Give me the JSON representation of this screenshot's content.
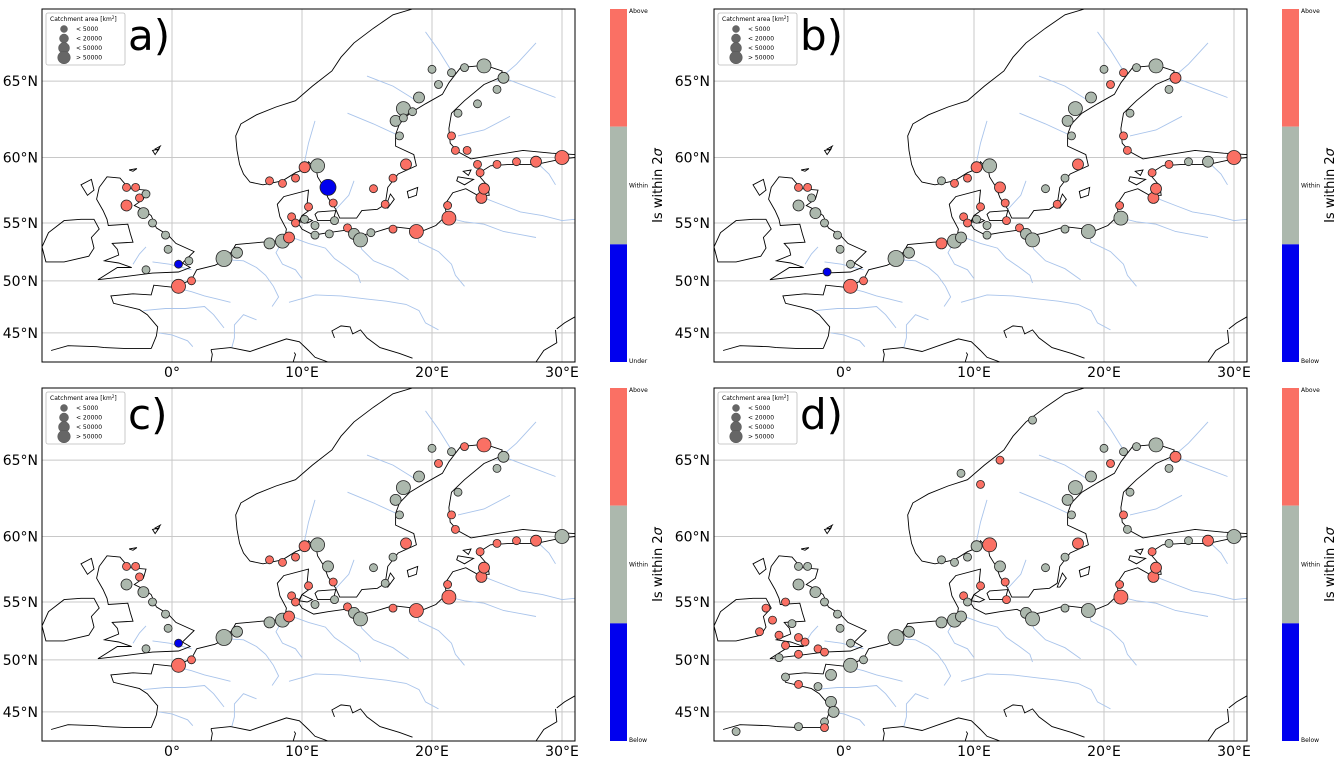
{
  "colors": {
    "above": "#fa7064",
    "within": "#acb8ad",
    "below": "#0000ee",
    "coast": "#000000",
    "river": "#a9c4eb",
    "grid": "#c8c8c8"
  },
  "legend": {
    "title": "Catchment area [km",
    "title_sup": "2",
    "title_end": "]",
    "items": [
      "< 5000",
      "< 20000",
      "< 50000",
      "> 50000"
    ]
  },
  "lat_ticks": [
    "65°N",
    "60°N",
    "55°N",
    "50°N",
    "45°N"
  ],
  "lon_ticks": [
    "0°",
    "10°E",
    "20°E",
    "30°E"
  ],
  "colorbar": {
    "title": "Is within 2",
    "sigma": "σ",
    "within": "Within"
  },
  "panels": [
    {
      "label": "a)",
      "colorbar_top": "Above",
      "colorbar_bottom": "Under"
    },
    {
      "label": "b)",
      "colorbar_top": "Above",
      "colorbar_bottom": "Below"
    },
    {
      "label": "c)",
      "colorbar_top": "Above",
      "colorbar_bottom": "Below"
    },
    {
      "label": "d)",
      "colorbar_top": "Above",
      "colorbar_bottom": "Below"
    }
  ],
  "stations": [
    [
      [
        -3.5,
        57.8,
        1,
        "a"
      ],
      [
        -2.8,
        57.8,
        1,
        "a"
      ],
      [
        -3.5,
        56.4,
        2,
        "a"
      ],
      [
        -2.5,
        57.0,
        1,
        "a"
      ],
      [
        -2.0,
        57.3,
        1,
        "w"
      ],
      [
        -2.2,
        55.8,
        2,
        "w"
      ],
      [
        -1.5,
        55.0,
        1,
        "w"
      ],
      [
        -0.5,
        54.0,
        1,
        "w"
      ],
      [
        -0.3,
        52.8,
        1,
        "w"
      ],
      [
        0.5,
        51.5,
        1,
        "b"
      ],
      [
        1.3,
        51.8,
        1,
        "w"
      ],
      [
        -2.0,
        51.0,
        1,
        "w"
      ],
      [
        0.5,
        49.5,
        3,
        "a"
      ],
      [
        1.5,
        50.0,
        1,
        "a"
      ],
      [
        4.0,
        52.0,
        4,
        "w"
      ],
      [
        5.0,
        52.5,
        2,
        "w"
      ],
      [
        7.5,
        53.3,
        2,
        "w"
      ],
      [
        8.5,
        53.5,
        3,
        "w"
      ],
      [
        9.0,
        53.8,
        2,
        "a"
      ],
      [
        7.5,
        58.3,
        1,
        "a"
      ],
      [
        8.5,
        58.1,
        1,
        "a"
      ],
      [
        9.5,
        58.5,
        1,
        "a"
      ],
      [
        10.2,
        59.3,
        2,
        "a"
      ],
      [
        11.2,
        59.4,
        3,
        "w"
      ],
      [
        12.0,
        57.8,
        4,
        "b"
      ],
      [
        12.4,
        56.6,
        1,
        "a"
      ],
      [
        10.5,
        56.3,
        1,
        "a"
      ],
      [
        9.2,
        55.5,
        1,
        "a"
      ],
      [
        9.5,
        55.0,
        1,
        "a"
      ],
      [
        10.2,
        55.3,
        1,
        "w"
      ],
      [
        11.0,
        54.8,
        1,
        "w"
      ],
      [
        12.5,
        55.2,
        1,
        "w"
      ],
      [
        11.0,
        54.0,
        1,
        "w"
      ],
      [
        12.1,
        54.1,
        1,
        "w"
      ],
      [
        13.5,
        54.6,
        1,
        "a"
      ],
      [
        14.0,
        54.1,
        2,
        "w"
      ],
      [
        14.5,
        53.6,
        3,
        "w"
      ],
      [
        15.3,
        54.2,
        1,
        "w"
      ],
      [
        17.0,
        54.5,
        1,
        "a"
      ],
      [
        18.8,
        54.3,
        3,
        "a"
      ],
      [
        21.3,
        55.4,
        3,
        "a"
      ],
      [
        21.2,
        56.4,
        1,
        "a"
      ],
      [
        23.8,
        57.0,
        2,
        "a"
      ],
      [
        24.0,
        57.7,
        2,
        "a"
      ],
      [
        23.7,
        58.9,
        1,
        "a"
      ],
      [
        23.5,
        59.5,
        1,
        "a"
      ],
      [
        25.0,
        59.5,
        1,
        "a"
      ],
      [
        26.5,
        59.7,
        1,
        "a"
      ],
      [
        28.0,
        59.7,
        2,
        "a"
      ],
      [
        30.0,
        60.0,
        3,
        "a"
      ],
      [
        15.5,
        57.7,
        1,
        "a"
      ],
      [
        16.4,
        56.5,
        1,
        "a"
      ],
      [
        17.0,
        58.5,
        1,
        "a"
      ],
      [
        18.0,
        59.5,
        2,
        "a"
      ],
      [
        17.5,
        61.5,
        1,
        "w"
      ],
      [
        17.2,
        62.5,
        2,
        "w"
      ],
      [
        17.8,
        63.3,
        3,
        "w"
      ],
      [
        19.0,
        64.0,
        2,
        "w"
      ],
      [
        20.5,
        64.8,
        1,
        "w"
      ],
      [
        21.5,
        65.5,
        1,
        "w"
      ],
      [
        22.5,
        65.8,
        1,
        "w"
      ],
      [
        24.0,
        65.9,
        3,
        "w"
      ],
      [
        25.5,
        65.2,
        2,
        "w"
      ],
      [
        25.0,
        64.5,
        1,
        "w"
      ],
      [
        23.5,
        63.6,
        1,
        "w"
      ],
      [
        22.0,
        63.0,
        1,
        "w"
      ],
      [
        21.5,
        61.5,
        1,
        "a"
      ],
      [
        21.8,
        60.5,
        1,
        "a"
      ],
      [
        22.7,
        60.5,
        1,
        "a"
      ],
      [
        20.0,
        65.7,
        1,
        "w"
      ],
      [
        18.5,
        63.1,
        1,
        "w"
      ],
      [
        17.8,
        62.7,
        1,
        "w"
      ]
    ],
    [
      [
        -3.5,
        57.8,
        1,
        "a"
      ],
      [
        -2.8,
        57.8,
        1,
        "a"
      ],
      [
        -3.5,
        56.4,
        2,
        "w"
      ],
      [
        -2.5,
        57.0,
        1,
        "w"
      ],
      [
        -2.2,
        55.8,
        2,
        "w"
      ],
      [
        -1.5,
        55.0,
        1,
        "w"
      ],
      [
        -0.5,
        54.0,
        1,
        "w"
      ],
      [
        -0.3,
        52.8,
        1,
        "w"
      ],
      [
        -1.3,
        50.8,
        1,
        "b"
      ],
      [
        0.5,
        51.5,
        1,
        "w"
      ],
      [
        0.5,
        49.5,
        3,
        "a"
      ],
      [
        1.5,
        50.0,
        1,
        "a"
      ],
      [
        4.0,
        52.0,
        4,
        "w"
      ],
      [
        5.0,
        52.5,
        2,
        "w"
      ],
      [
        7.5,
        53.3,
        2,
        "a"
      ],
      [
        8.5,
        53.5,
        3,
        "w"
      ],
      [
        9.0,
        53.8,
        2,
        "w"
      ],
      [
        7.5,
        58.3,
        1,
        "w"
      ],
      [
        8.5,
        58.1,
        1,
        "a"
      ],
      [
        9.5,
        58.5,
        1,
        "a"
      ],
      [
        10.2,
        59.3,
        2,
        "a"
      ],
      [
        11.2,
        59.4,
        3,
        "w"
      ],
      [
        12.0,
        57.8,
        2,
        "a"
      ],
      [
        12.4,
        56.6,
        1,
        "a"
      ],
      [
        10.5,
        56.3,
        1,
        "a"
      ],
      [
        9.2,
        55.5,
        1,
        "a"
      ],
      [
        9.5,
        55.0,
        1,
        "a"
      ],
      [
        10.2,
        55.3,
        1,
        "w"
      ],
      [
        11.0,
        54.8,
        1,
        "w"
      ],
      [
        12.5,
        55.2,
        1,
        "a"
      ],
      [
        11.0,
        54.0,
        1,
        "w"
      ],
      [
        13.5,
        54.6,
        1,
        "a"
      ],
      [
        14.0,
        54.1,
        2,
        "w"
      ],
      [
        14.5,
        53.6,
        3,
        "w"
      ],
      [
        17.0,
        54.5,
        1,
        "w"
      ],
      [
        18.8,
        54.3,
        3,
        "w"
      ],
      [
        21.3,
        55.4,
        3,
        "w"
      ],
      [
        21.2,
        56.4,
        1,
        "a"
      ],
      [
        23.8,
        57.0,
        2,
        "a"
      ],
      [
        24.0,
        57.7,
        2,
        "a"
      ],
      [
        23.7,
        58.9,
        1,
        "a"
      ],
      [
        25.0,
        59.5,
        1,
        "a"
      ],
      [
        26.5,
        59.7,
        1,
        "w"
      ],
      [
        28.0,
        59.7,
        2,
        "w"
      ],
      [
        30.0,
        60.0,
        3,
        "a"
      ],
      [
        15.5,
        57.7,
        1,
        "w"
      ],
      [
        16.4,
        56.5,
        1,
        "a"
      ],
      [
        17.0,
        58.5,
        1,
        "w"
      ],
      [
        18.0,
        59.5,
        2,
        "a"
      ],
      [
        17.5,
        61.5,
        1,
        "w"
      ],
      [
        17.2,
        62.5,
        2,
        "w"
      ],
      [
        17.8,
        63.3,
        3,
        "w"
      ],
      [
        19.0,
        64.0,
        2,
        "w"
      ],
      [
        20.5,
        64.8,
        1,
        "a"
      ],
      [
        21.5,
        65.5,
        1,
        "a"
      ],
      [
        22.5,
        65.8,
        1,
        "w"
      ],
      [
        24.0,
        65.9,
        3,
        "w"
      ],
      [
        25.5,
        65.2,
        2,
        "a"
      ],
      [
        25.0,
        64.5,
        1,
        "w"
      ],
      [
        22.0,
        63.0,
        1,
        "w"
      ],
      [
        21.5,
        61.5,
        1,
        "a"
      ],
      [
        21.8,
        60.5,
        1,
        "a"
      ],
      [
        20.0,
        65.7,
        1,
        "w"
      ]
    ],
    [
      [
        -3.5,
        57.8,
        1,
        "a"
      ],
      [
        -2.8,
        57.8,
        1,
        "a"
      ],
      [
        -3.5,
        56.4,
        2,
        "w"
      ],
      [
        -2.5,
        57.0,
        1,
        "a"
      ],
      [
        -2.2,
        55.8,
        2,
        "w"
      ],
      [
        -1.5,
        55.0,
        1,
        "w"
      ],
      [
        -0.5,
        54.0,
        1,
        "w"
      ],
      [
        -0.3,
        52.8,
        1,
        "w"
      ],
      [
        0.5,
        51.5,
        1,
        "b"
      ],
      [
        -2.0,
        51.0,
        1,
        "w"
      ],
      [
        0.5,
        49.5,
        3,
        "a"
      ],
      [
        1.5,
        50.0,
        1,
        "a"
      ],
      [
        4.0,
        52.0,
        4,
        "w"
      ],
      [
        5.0,
        52.5,
        2,
        "w"
      ],
      [
        7.5,
        53.3,
        2,
        "w"
      ],
      [
        8.5,
        53.5,
        3,
        "w"
      ],
      [
        9.0,
        53.8,
        2,
        "a"
      ],
      [
        7.5,
        58.3,
        1,
        "a"
      ],
      [
        8.5,
        58.1,
        1,
        "a"
      ],
      [
        9.5,
        58.5,
        1,
        "a"
      ],
      [
        10.2,
        59.3,
        2,
        "a"
      ],
      [
        11.2,
        59.4,
        3,
        "w"
      ],
      [
        12.0,
        57.8,
        2,
        "w"
      ],
      [
        12.4,
        56.6,
        1,
        "a"
      ],
      [
        10.5,
        56.3,
        1,
        "a"
      ],
      [
        9.2,
        55.5,
        1,
        "a"
      ],
      [
        9.5,
        55.0,
        1,
        "a"
      ],
      [
        11.0,
        54.8,
        1,
        "w"
      ],
      [
        12.5,
        55.2,
        1,
        "w"
      ],
      [
        13.5,
        54.6,
        1,
        "a"
      ],
      [
        14.0,
        54.1,
        2,
        "w"
      ],
      [
        14.5,
        53.6,
        3,
        "w"
      ],
      [
        17.0,
        54.5,
        1,
        "a"
      ],
      [
        18.8,
        54.3,
        3,
        "a"
      ],
      [
        21.3,
        55.4,
        3,
        "a"
      ],
      [
        21.2,
        56.4,
        1,
        "a"
      ],
      [
        23.8,
        57.0,
        2,
        "a"
      ],
      [
        24.0,
        57.7,
        2,
        "a"
      ],
      [
        23.7,
        58.9,
        1,
        "a"
      ],
      [
        25.0,
        59.5,
        1,
        "a"
      ],
      [
        26.5,
        59.7,
        1,
        "a"
      ],
      [
        28.0,
        59.7,
        2,
        "a"
      ],
      [
        30.0,
        60.0,
        3,
        "w"
      ],
      [
        15.5,
        57.7,
        1,
        "w"
      ],
      [
        16.4,
        56.5,
        1,
        "w"
      ],
      [
        17.0,
        58.5,
        1,
        "w"
      ],
      [
        18.0,
        59.5,
        2,
        "a"
      ],
      [
        17.5,
        61.5,
        1,
        "w"
      ],
      [
        17.2,
        62.5,
        2,
        "w"
      ],
      [
        17.8,
        63.3,
        3,
        "w"
      ],
      [
        19.0,
        64.0,
        2,
        "w"
      ],
      [
        20.5,
        64.8,
        1,
        "a"
      ],
      [
        21.5,
        65.5,
        1,
        "w"
      ],
      [
        22.5,
        65.8,
        1,
        "a"
      ],
      [
        24.0,
        65.9,
        3,
        "a"
      ],
      [
        25.5,
        65.2,
        2,
        "w"
      ],
      [
        25.0,
        64.5,
        1,
        "w"
      ],
      [
        22.0,
        63.0,
        1,
        "w"
      ],
      [
        21.5,
        61.5,
        1,
        "a"
      ],
      [
        21.8,
        60.5,
        1,
        "a"
      ],
      [
        20.0,
        65.7,
        1,
        "w"
      ]
    ],
    [
      [
        -3.5,
        57.8,
        1,
        "w"
      ],
      [
        -2.8,
        57.8,
        1,
        "w"
      ],
      [
        -3.5,
        56.4,
        2,
        "w"
      ],
      [
        -2.2,
        55.8,
        2,
        "w"
      ],
      [
        -1.5,
        55.0,
        1,
        "w"
      ],
      [
        -0.5,
        54.0,
        1,
        "w"
      ],
      [
        -0.3,
        52.8,
        1,
        "w"
      ],
      [
        -4.5,
        55.0,
        1,
        "a"
      ],
      [
        -6.0,
        54.5,
        1,
        "a"
      ],
      [
        -5.5,
        53.5,
        1,
        "a"
      ],
      [
        -4.0,
        53.2,
        1,
        "w"
      ],
      [
        -6.5,
        52.5,
        1,
        "a"
      ],
      [
        -5.0,
        52.2,
        1,
        "a"
      ],
      [
        -3.5,
        52.0,
        1,
        "a"
      ],
      [
        -4.5,
        51.3,
        1,
        "a"
      ],
      [
        -3.0,
        51.6,
        1,
        "a"
      ],
      [
        -2.0,
        51.0,
        1,
        "a"
      ],
      [
        -3.5,
        50.5,
        1,
        "a"
      ],
      [
        -5.0,
        50.2,
        1,
        "w"
      ],
      [
        -1.5,
        50.7,
        1,
        "a"
      ],
      [
        0.5,
        51.5,
        1,
        "w"
      ],
      [
        0.5,
        49.5,
        3,
        "w"
      ],
      [
        1.5,
        50.0,
        1,
        "w"
      ],
      [
        -1.0,
        48.6,
        2,
        "w"
      ],
      [
        -2.0,
        47.5,
        1,
        "w"
      ],
      [
        -1.0,
        46.0,
        2,
        "w"
      ],
      [
        -0.8,
        45.0,
        2,
        "w"
      ],
      [
        -1.5,
        44.0,
        1,
        "w"
      ],
      [
        -4.5,
        48.4,
        1,
        "w"
      ],
      [
        -3.5,
        47.7,
        1,
        "a"
      ],
      [
        -1.5,
        43.4,
        1,
        "a"
      ],
      [
        -3.5,
        43.5,
        1,
        "w"
      ],
      [
        -8.3,
        43.0,
        1,
        "w"
      ],
      [
        4.0,
        52.0,
        4,
        "w"
      ],
      [
        5.0,
        52.5,
        2,
        "w"
      ],
      [
        7.5,
        53.3,
        2,
        "w"
      ],
      [
        8.5,
        53.5,
        3,
        "w"
      ],
      [
        9.0,
        53.8,
        2,
        "w"
      ],
      [
        7.5,
        58.3,
        1,
        "w"
      ],
      [
        8.5,
        58.1,
        1,
        "w"
      ],
      [
        9.5,
        58.5,
        1,
        "w"
      ],
      [
        10.2,
        59.3,
        2,
        "w"
      ],
      [
        11.2,
        59.4,
        3,
        "a"
      ],
      [
        12.0,
        57.8,
        2,
        "w"
      ],
      [
        12.4,
        56.6,
        1,
        "a"
      ],
      [
        10.5,
        56.3,
        1,
        "a"
      ],
      [
        9.2,
        55.5,
        1,
        "a"
      ],
      [
        9.5,
        55.0,
        1,
        "w"
      ],
      [
        12.5,
        55.2,
        1,
        "a"
      ],
      [
        14.0,
        54.1,
        2,
        "w"
      ],
      [
        14.5,
        53.6,
        3,
        "w"
      ],
      [
        17.0,
        54.5,
        1,
        "w"
      ],
      [
        18.8,
        54.3,
        3,
        "w"
      ],
      [
        21.3,
        55.4,
        3,
        "a"
      ],
      [
        21.2,
        56.4,
        1,
        "a"
      ],
      [
        23.8,
        57.0,
        2,
        "a"
      ],
      [
        24.0,
        57.7,
        2,
        "a"
      ],
      [
        23.7,
        58.9,
        1,
        "a"
      ],
      [
        25.0,
        59.5,
        1,
        "w"
      ],
      [
        26.5,
        59.7,
        1,
        "w"
      ],
      [
        28.0,
        59.7,
        2,
        "a"
      ],
      [
        30.0,
        60.0,
        3,
        "w"
      ],
      [
        15.5,
        57.7,
        1,
        "w"
      ],
      [
        17.0,
        58.5,
        1,
        "w"
      ],
      [
        18.0,
        59.5,
        2,
        "a"
      ],
      [
        17.5,
        61.5,
        1,
        "w"
      ],
      [
        17.2,
        62.5,
        2,
        "w"
      ],
      [
        17.8,
        63.3,
        3,
        "w"
      ],
      [
        19.0,
        64.0,
        2,
        "w"
      ],
      [
        20.5,
        64.8,
        1,
        "a"
      ],
      [
        21.5,
        65.5,
        1,
        "w"
      ],
      [
        22.5,
        65.8,
        1,
        "w"
      ],
      [
        24.0,
        65.9,
        3,
        "w"
      ],
      [
        25.5,
        65.2,
        2,
        "a"
      ],
      [
        25.0,
        64.5,
        1,
        "w"
      ],
      [
        22.0,
        63.0,
        1,
        "w"
      ],
      [
        21.5,
        61.5,
        1,
        "a"
      ],
      [
        21.8,
        60.5,
        1,
        "w"
      ],
      [
        20.0,
        65.7,
        1,
        "w"
      ],
      [
        9.0,
        64.2,
        1,
        "w"
      ],
      [
        10.5,
        63.5,
        1,
        "a"
      ],
      [
        12.0,
        65.0,
        1,
        "a"
      ],
      [
        14.5,
        67.3,
        1,
        "w"
      ]
    ]
  ]
}
